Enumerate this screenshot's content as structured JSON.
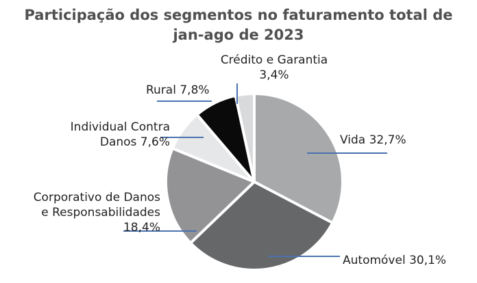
{
  "chart_data": {
    "type": "pie",
    "title": "Participação dos segmentos no faturamento total de jan-ago de 2023",
    "title_lines": [
      "Participação dos segmentos no faturamento total de",
      "jan-ago de 2023"
    ],
    "slices": [
      {
        "name": "Vida",
        "value": 32.7,
        "value_label": "32,7%",
        "color": "#a7a9ab",
        "label_lines": [
          "Vida 32,7%"
        ]
      },
      {
        "name": "Automóvel",
        "value": 30.1,
        "value_label": "30,1%",
        "color": "#666769",
        "label_lines": [
          "Automóvel 30,1%"
        ]
      },
      {
        "name": "Corporativo de Danos e Responsabilidades",
        "value": 18.4,
        "value_label": "18,4%",
        "color": "#939396",
        "label_lines": [
          "Corporativo de Danos",
          "e Responsabilidades",
          "18,4%"
        ]
      },
      {
        "name": "Individual Contra Danos",
        "value": 7.6,
        "value_label": "7,6%",
        "color": "#e6e7e8",
        "label_lines": [
          "Individual Contra",
          "Danos 7,6%"
        ]
      },
      {
        "name": "Rural",
        "value": 7.8,
        "value_label": "7,8%",
        "color": "#0a0a0a",
        "label_lines": [
          "Rural 7,8%"
        ]
      },
      {
        "name": "Crédito e Garantia",
        "value": 3.4,
        "value_label": "3,4%",
        "color": "#d9dadb",
        "label_lines": [
          "Crédito e Garantia",
          "3,4%"
        ]
      }
    ],
    "leader_line_color": "#4a72b0",
    "start": "12 o'clock",
    "direction": "clockwise",
    "legend": "none"
  }
}
